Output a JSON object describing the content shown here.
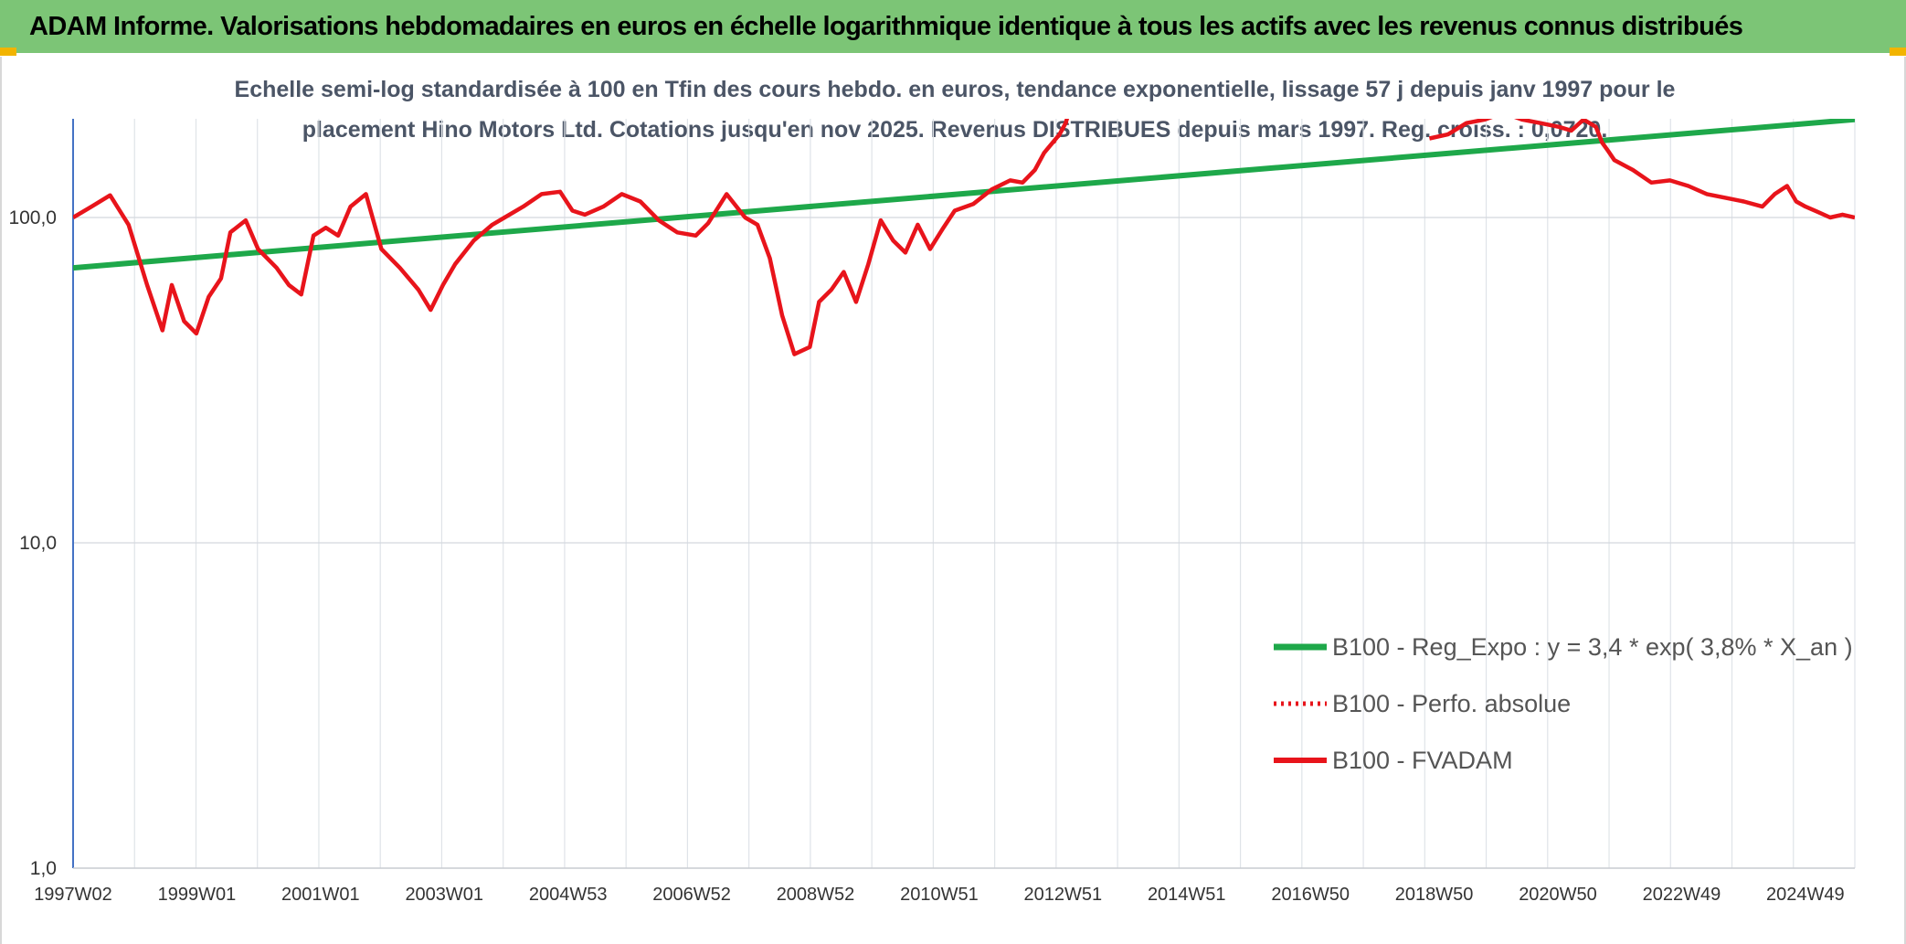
{
  "header": {
    "title": "ADAM Informe. Valorisations hebdomadaires en euros en échelle logarithmique identique à tous les actifs avec les revenus connus distribués"
  },
  "chart_data": {
    "type": "line",
    "subtitle_line1": "Echelle semi-log standardisée à 100 en Tfin des cours hebdo. en euros, tendance exponentielle, lissage 57 j depuis janv 1997 pour le",
    "subtitle_line2": "placement Hino Motors Ltd. Cotations jusqu'en nov 2025. Revenus DISTRIBUES depuis mars 1997. Reg. croiss. : 0,0720.",
    "y_scale": "log",
    "ylim": [
      1,
      200
    ],
    "y_ticks": [
      "1,0",
      "10,0",
      "100,0"
    ],
    "xlim": [
      1997.0,
      2025.9
    ],
    "x_tick_labels": [
      "1997W02",
      "1999W01",
      "2001W01",
      "2003W01",
      "2004W53",
      "2006W52",
      "2008W52",
      "2010W51",
      "2012W51",
      "2014W51",
      "2016W50",
      "2018W50",
      "2020W50",
      "2022W49",
      "2024W49"
    ],
    "grid": true,
    "legend_position": "bottom-right",
    "colors": {
      "trend": "#1ea84a",
      "perf": "#e8141b",
      "fvadam": "#e8141b",
      "header_bg": "#7cc576",
      "accent": "#f2b400"
    },
    "legend": [
      "B100 - Reg_Expo : y = 3,4 * exp( 3,8% *  X_an )",
      "B100 - Perfo. absolue",
      "B100 - FVADAM"
    ],
    "series": [
      {
        "name": "B100 - Reg_Expo : y = 3,4 * exp( 3,8% *  X_an )",
        "style": "solid",
        "x": [
          1997.0,
          2025.9
        ],
        "values": [
          70,
          200
        ]
      },
      {
        "name": "B100 - FVADAM",
        "style": "solid",
        "x": [
          1997.0,
          1997.3,
          1997.6,
          1997.9,
          1998.2,
          1998.45,
          1998.6,
          1998.8,
          1999.0,
          1999.2,
          1999.4,
          1999.55,
          1999.8,
          2000.0,
          2000.3,
          2000.5,
          2000.7,
          2000.9,
          2001.1,
          2001.3,
          2001.5,
          2001.75,
          2002.0,
          2002.3,
          2002.6,
          2002.8,
          2003.0,
          2003.2,
          2003.5,
          2003.8,
          2004.0,
          2004.3,
          2004.6,
          2004.9,
          2005.1,
          2005.3,
          2005.6,
          2005.9,
          2006.2,
          2006.5,
          2006.8,
          2007.1,
          2007.3,
          2007.6,
          2007.9,
          2008.1,
          2008.3,
          2008.5,
          2008.7,
          2008.95,
          2009.1,
          2009.3,
          2009.5,
          2009.7,
          2009.9,
          2010.1,
          2010.3,
          2010.5,
          2010.7,
          2010.9,
          2011.1,
          2011.3,
          2011.6,
          2011.9,
          2012.2,
          2012.4,
          2012.6,
          2012.75,
          2013.0,
          2013.1,
          2013.15,
          2018.9,
          2019.0,
          2019.3,
          2019.6,
          2019.9,
          2020.2,
          2020.5,
          2020.8,
          2021.1,
          2021.3,
          2021.5,
          2021.7,
          2021.8,
          2021.9,
          2022.0,
          2022.3,
          2022.6,
          2022.9,
          2023.2,
          2023.5,
          2023.8,
          2024.1,
          2024.4,
          2024.6,
          2024.8,
          2024.95,
          2025.1,
          2025.3,
          2025.5,
          2025.7,
          2025.9
        ],
        "values": [
          100,
          108,
          117,
          95,
          62,
          45,
          62,
          48,
          44,
          57,
          65,
          90,
          98,
          80,
          70,
          62,
          58,
          88,
          93,
          88,
          108,
          118,
          80,
          70,
          60,
          52,
          62,
          72,
          85,
          95,
          100,
          108,
          118,
          120,
          105,
          102,
          108,
          118,
          112,
          98,
          90,
          88,
          96,
          118,
          100,
          95,
          75,
          50,
          38,
          40,
          55,
          60,
          68,
          55,
          72,
          98,
          85,
          78,
          95,
          80,
          92,
          105,
          110,
          122,
          130,
          128,
          140,
          158,
          180,
          195,
          210,
          null,
          175,
          180,
          195,
          200,
          210,
          200,
          195,
          190,
          185,
          200,
          190,
          170,
          160,
          150,
          140,
          128,
          130,
          125,
          118,
          115,
          112,
          108,
          118,
          125,
          112,
          108,
          104,
          100,
          102,
          100
        ]
      },
      {
        "name": "B100 - Perfo. absolue",
        "style": "dotted",
        "x": [
          2012.9,
          2013.0,
          2013.1,
          2013.15
        ],
        "values": [
          170,
          180,
          195,
          210
        ]
      }
    ]
  }
}
